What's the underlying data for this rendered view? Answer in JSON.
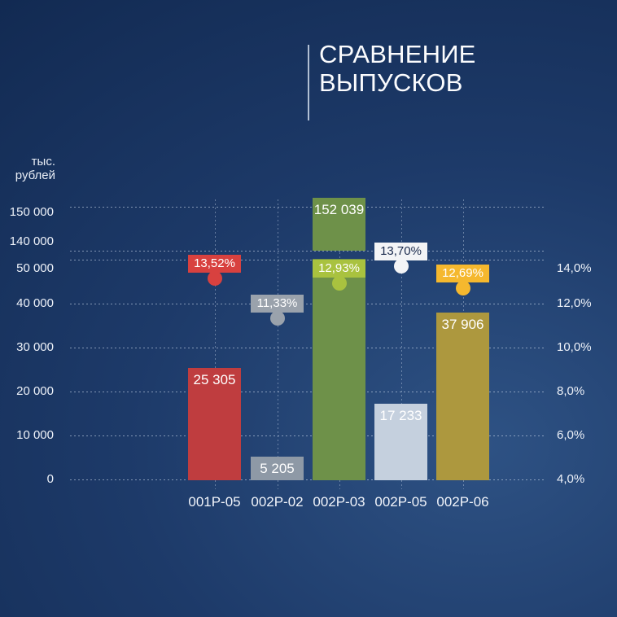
{
  "header": {
    "title_line1": "СРАВНЕНИЕ",
    "title_line2": "ВЫПУСКОВ"
  },
  "axis_unit": {
    "line1": "тыс.",
    "line2": "рублей"
  },
  "chart_data": {
    "type": "bar",
    "title": "СРАВНЕНИЕ ВЫПУСКОВ",
    "categories": [
      "001Р-05",
      "002Р-02",
      "002Р-03",
      "002Р-05",
      "002Р-06"
    ],
    "series": [
      {
        "name": "volume",
        "type": "bar",
        "unit": "тыс. рублей",
        "values": [
          25305,
          5205,
          152039,
          17233,
          37906
        ],
        "labels": [
          "25 305",
          "5 205",
          "152 039",
          "17 233",
          "37 906"
        ],
        "colors": [
          "#bf3d3f",
          "#8e99a6",
          "#6e9149",
          "#c5d0de",
          "#ad983e"
        ]
      },
      {
        "name": "rate",
        "type": "scatter",
        "unit": "%",
        "values": [
          13.52,
          11.33,
          12.93,
          13.7,
          12.69
        ],
        "labels": [
          "13,52%",
          "11,33%",
          "12,93%",
          "13,70%",
          "12,69%"
        ],
        "colors": [
          "#d8413f",
          "#9aa2ac",
          "#a9c23f",
          "#f3f4f6",
          "#f5b82e"
        ],
        "label_text_colors": [
          "#ffffff",
          "#ffffff",
          "#ffffff",
          "#1b2b4d",
          "#ffffff"
        ]
      }
    ],
    "left_axis": {
      "label": "тыс. рублей",
      "ticks": [
        0,
        10000,
        20000,
        30000,
        40000,
        50000,
        140000,
        150000
      ],
      "tick_labels": [
        "0",
        "10 000",
        "20 000",
        "30 000",
        "40 000",
        "50 000",
        "140 000",
        "150 000"
      ],
      "broken_axis": true,
      "break_between": [
        50000,
        140000
      ]
    },
    "right_axis": {
      "ticks": [
        4,
        6,
        8,
        10,
        12,
        14
      ],
      "tick_labels": [
        "4,0%",
        "6,0%",
        "8,0%",
        "10,0%",
        "12,0%",
        "14,0%"
      ]
    },
    "grid": true,
    "legend": null
  },
  "colors": {
    "background_dark": "#122a52",
    "background_light": "#2e5284",
    "text": "#f2f5fb",
    "gridline": "#d6e2f3"
  }
}
